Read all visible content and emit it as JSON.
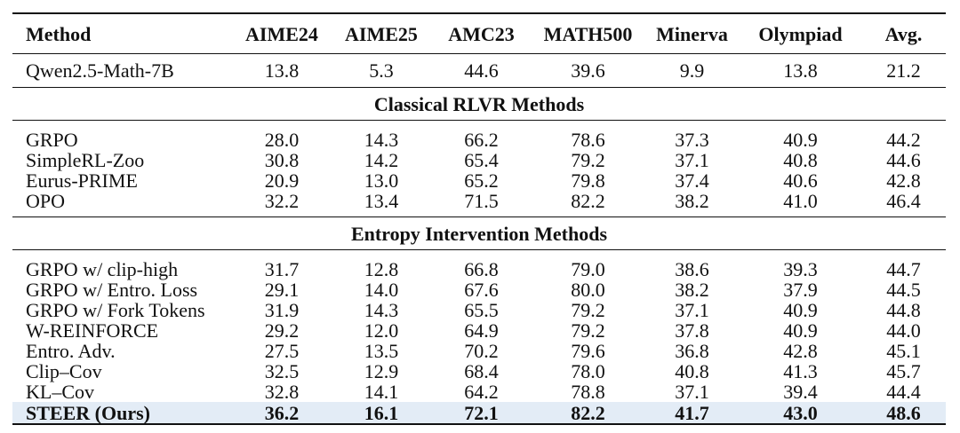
{
  "header": [
    "Method",
    "AIME24",
    "AIME25",
    "AMC23",
    "MATH500",
    "Minerva",
    "Olympiad",
    "Avg."
  ],
  "baseline": [
    "Qwen2.5-Math-7B",
    "13.8",
    "5.3",
    "44.6",
    "39.6",
    "9.9",
    "13.8",
    "21.2"
  ],
  "sections": [
    {
      "title": "Classical RLVR Methods",
      "rows": [
        [
          "GRPO",
          "28.0",
          "14.3",
          "66.2",
          "78.6",
          "37.3",
          "40.9",
          "44.2"
        ],
        [
          "SimpleRL-Zoo",
          "30.8",
          "14.2",
          "65.4",
          "79.2",
          "37.1",
          "40.8",
          "44.6"
        ],
        [
          "Eurus-PRIME",
          "20.9",
          "13.0",
          "65.2",
          "79.8",
          "37.4",
          "40.6",
          "42.8"
        ],
        [
          "OPO",
          "32.2",
          "13.4",
          "71.5",
          "82.2",
          "38.2",
          "41.0",
          "46.4"
        ]
      ]
    },
    {
      "title": "Entropy Intervention Methods",
      "rows": [
        [
          "GRPO w/ clip-high",
          "31.7",
          "12.8",
          "66.8",
          "79.0",
          "38.6",
          "39.3",
          "44.7"
        ],
        [
          "GRPO w/ Entro. Loss",
          "29.1",
          "14.0",
          "67.6",
          "80.0",
          "38.2",
          "37.9",
          "44.5"
        ],
        [
          "GRPO w/ Fork Tokens",
          "31.9",
          "14.3",
          "65.5",
          "79.2",
          "37.1",
          "40.9",
          "44.8"
        ],
        [
          "W-REINFORCE",
          "29.2",
          "12.0",
          "64.9",
          "79.2",
          "37.8",
          "40.9",
          "44.0"
        ],
        [
          "Entro. Adv.",
          "27.5",
          "13.5",
          "70.2",
          "79.6",
          "36.8",
          "42.8",
          "45.1"
        ],
        [
          "Clip–Cov",
          "32.5",
          "12.9",
          "68.4",
          "78.0",
          "40.8",
          "41.3",
          "45.7"
        ],
        [
          "KL–Cov",
          "32.8",
          "14.1",
          "64.2",
          "78.8",
          "37.1",
          "39.4",
          "44.4"
        ]
      ]
    }
  ],
  "ours": [
    "STEER (Ours)",
    "36.2",
    "16.1",
    "72.1",
    "82.2",
    "41.7",
    "43.0",
    "48.6"
  ],
  "colors": {
    "highlight_row": "#e3ecf6",
    "rule": "#111111"
  }
}
